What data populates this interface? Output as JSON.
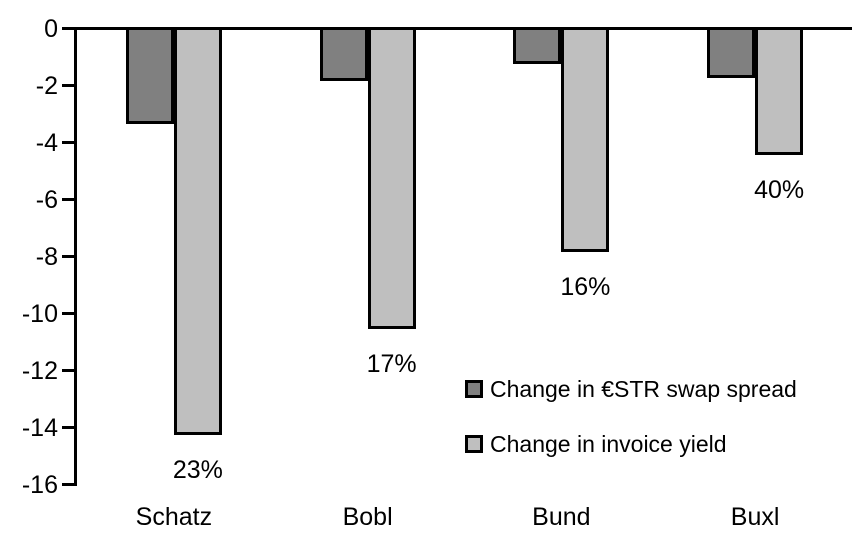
{
  "chart_data": {
    "type": "bar",
    "orientation": "vertical-negative",
    "title": "",
    "xlabel": "",
    "ylabel": "",
    "categories": [
      "Schatz",
      "Bobl",
      "Bund",
      "Buxl"
    ],
    "series": [
      {
        "name": "Change in €STR swap spread",
        "color": "#808080",
        "values": [
          -3.3,
          -1.8,
          -1.2,
          -1.7
        ]
      },
      {
        "name": "Change in invoice yield",
        "color": "#bfbfbf",
        "values": [
          -14.2,
          -10.5,
          -7.8,
          -4.4
        ]
      }
    ],
    "data_labels": {
      "series": "Change in invoice yield",
      "values": [
        "23%",
        "17%",
        "16%",
        "40%"
      ]
    },
    "yticks": [
      0,
      -2,
      -4,
      -6,
      -8,
      -10,
      -12,
      -14,
      -16
    ],
    "ylim": [
      -16,
      0
    ],
    "grid": false,
    "legend_position": "inside-middle-right",
    "bar_outline_color": "#000000",
    "axis_color": "#000000",
    "background_color": "#ffffff"
  }
}
